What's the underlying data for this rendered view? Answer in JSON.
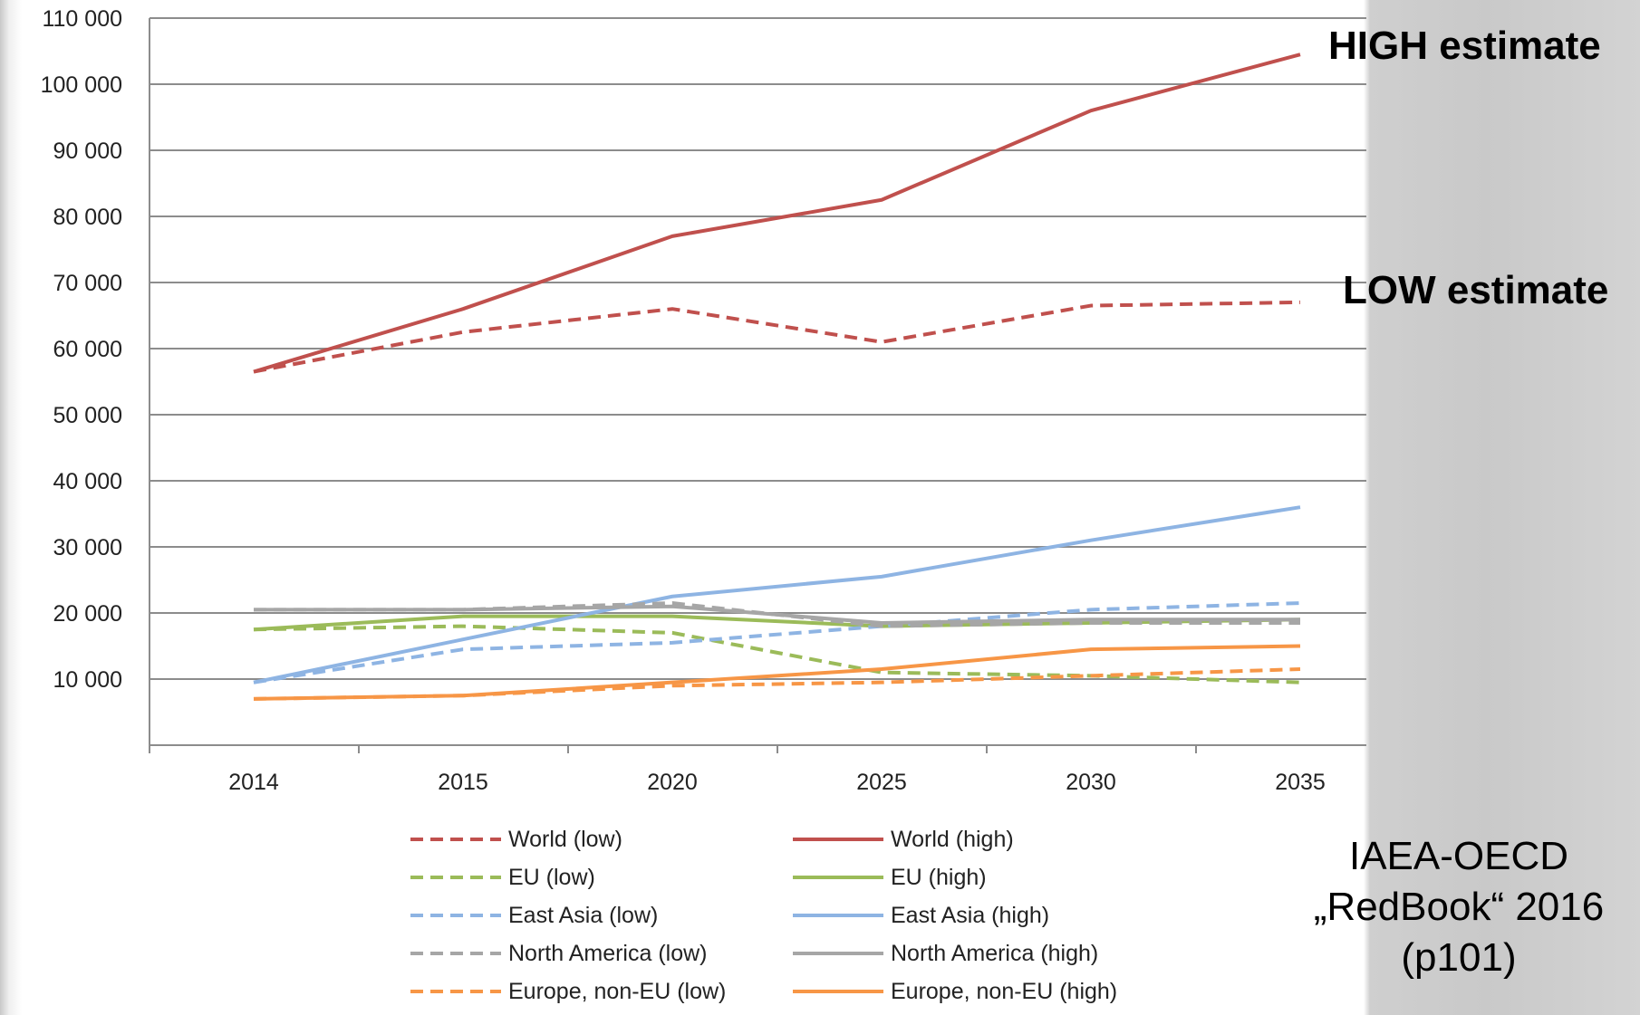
{
  "chart_data": {
    "type": "line",
    "x": [
      "2014",
      "2015",
      "2020",
      "2025",
      "2030",
      "2035"
    ],
    "ylim": [
      0,
      110000
    ],
    "yticks": [
      "10 000",
      "20 000",
      "30 000",
      "40 000",
      "50 000",
      "60 000",
      "70 000",
      "80 000",
      "90 000",
      "100 000",
      "110 000"
    ],
    "ytick_values": [
      10000,
      20000,
      30000,
      40000,
      50000,
      60000,
      70000,
      80000,
      90000,
      100000,
      110000
    ],
    "grid": "horizontal",
    "legend_position": "bottom",
    "series": [
      {
        "name": "World (low)",
        "color": "#c0504d",
        "dashed": true,
        "values": [
          56500,
          62500,
          66000,
          61000,
          66500,
          67000
        ]
      },
      {
        "name": "World (high)",
        "color": "#c0504d",
        "dashed": false,
        "values": [
          56500,
          66000,
          77000,
          82500,
          96000,
          104500
        ]
      },
      {
        "name": "EU (low)",
        "color": "#9bbb59",
        "dashed": true,
        "values": [
          17500,
          18000,
          17000,
          11000,
          10500,
          9500
        ]
      },
      {
        "name": "EU (high)",
        "color": "#9bbb59",
        "dashed": false,
        "values": [
          17500,
          19500,
          19500,
          18000,
          18500,
          19000
        ]
      },
      {
        "name": "East Asia (low)",
        "color": "#8eb4e3",
        "dashed": true,
        "values": [
          9500,
          14500,
          15500,
          18000,
          20500,
          21500
        ]
      },
      {
        "name": "East Asia (high)",
        "color": "#8eb4e3",
        "dashed": false,
        "values": [
          9500,
          16000,
          22500,
          25500,
          31000,
          36000
        ]
      },
      {
        "name": "North America (low)",
        "color": "#a6a6a6",
        "dashed": true,
        "values": [
          20500,
          20500,
          21500,
          18000,
          18500,
          18500
        ]
      },
      {
        "name": "North America (high)",
        "color": "#a6a6a6",
        "dashed": false,
        "values": [
          20500,
          20500,
          21000,
          18500,
          19000,
          19000
        ]
      },
      {
        "name": "Europe, non-EU (low)",
        "color": "#f79646",
        "dashed": true,
        "values": [
          7000,
          7500,
          9000,
          9500,
          10500,
          11500
        ]
      },
      {
        "name": "Europe, non-EU (high)",
        "color": "#f79646",
        "dashed": false,
        "values": [
          7000,
          7500,
          9500,
          11500,
          14500,
          15000
        ]
      }
    ]
  },
  "annotations": {
    "high": "HIGH estimate",
    "low": "LOW estimate",
    "source_lines": [
      "IAEA-OECD",
      "„RedBook“ 2016",
      "(p101)"
    ]
  }
}
